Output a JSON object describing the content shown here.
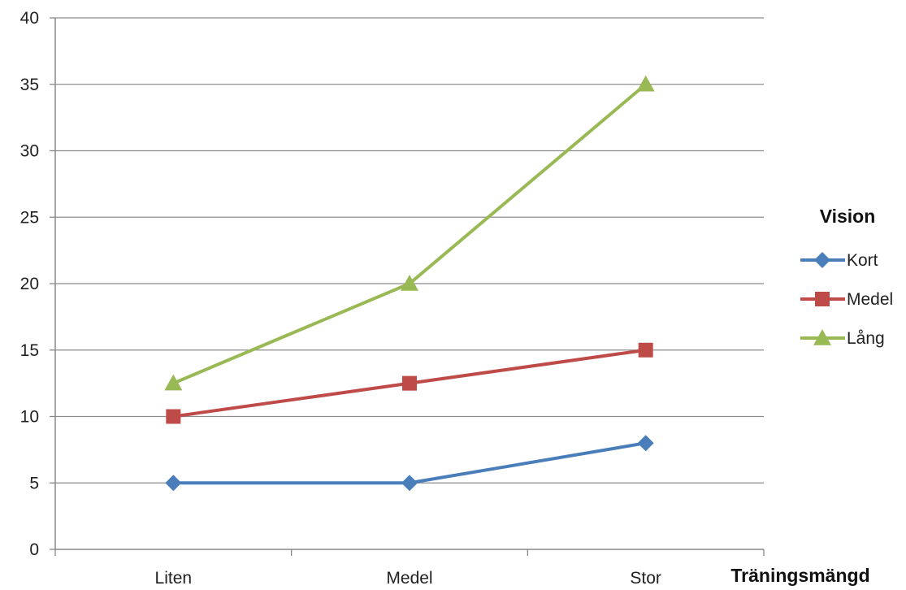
{
  "chart_data": {
    "type": "line",
    "title": "",
    "xlabel": "Träningsmängd",
    "ylabel": "",
    "categories": [
      "Liten",
      "Medel",
      "Stor"
    ],
    "ylim": [
      0,
      40
    ],
    "yticks": [
      "0",
      "5",
      "10",
      "15",
      "20",
      "25",
      "30",
      "35",
      "40"
    ],
    "grid": true,
    "legend_title": "Vision",
    "legend_position": "right",
    "series": [
      {
        "name": "Kort",
        "values": [
          5,
          5,
          8
        ],
        "color": "#4a7ebb",
        "marker": "diamond"
      },
      {
        "name": "Medel",
        "values": [
          10,
          12.5,
          15
        ],
        "color": "#be4b48",
        "marker": "square"
      },
      {
        "name": "Lång",
        "values": [
          12.5,
          20,
          35
        ],
        "color": "#98b954",
        "marker": "triangle"
      }
    ]
  }
}
